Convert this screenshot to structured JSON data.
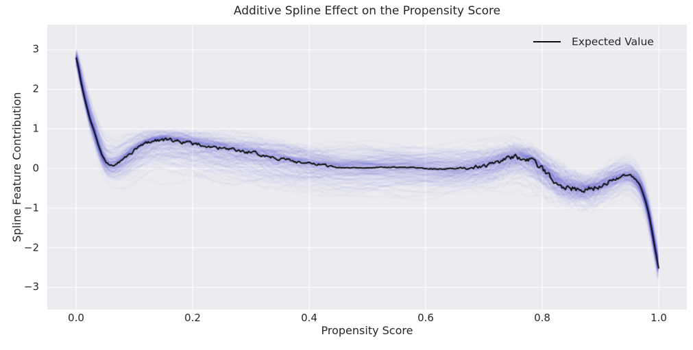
{
  "chart_data": {
    "type": "line",
    "title": "Additive Spline Effect on the Propensity Score",
    "xlabel": "Propensity Score",
    "ylabel": "Spline Feature Contribution",
    "xlim": [
      -0.0494,
      1.0482
    ],
    "ylim": [
      -3.562,
      3.631
    ],
    "grid": true,
    "legend_position": "upper right",
    "x_ticks": {
      "values": [
        0.0,
        0.2,
        0.4,
        0.6,
        0.8,
        1.0
      ],
      "labels": [
        "0.0",
        "0.2",
        "0.4",
        "0.6",
        "0.8",
        "1.0"
      ]
    },
    "y_ticks": {
      "values": [
        -3,
        -2,
        -1,
        0,
        1,
        2,
        3
      ],
      "labels": [
        "−3",
        "−2",
        "−1",
        "0",
        "1",
        "2",
        "3"
      ]
    },
    "legend": [
      {
        "label": "Expected Value",
        "color": "#0d0d0d"
      }
    ],
    "colors": {
      "figure_background": "#ffffff",
      "plot_background": "#ebebf0",
      "grid": "#ffffff",
      "text": "#262626",
      "expected_line": "#0d0d0d",
      "band": "#5252d6"
    },
    "series": [
      {
        "name": "Expected Value",
        "style": "noisy-line",
        "color": "#0d0d0d",
        "points": [
          [
            0.0,
            2.8
          ],
          [
            0.004,
            2.55
          ],
          [
            0.008,
            2.22
          ],
          [
            0.012,
            1.95
          ],
          [
            0.016,
            1.7
          ],
          [
            0.02,
            1.47
          ],
          [
            0.025,
            1.2
          ],
          [
            0.03,
            1.0
          ],
          [
            0.035,
            0.75
          ],
          [
            0.04,
            0.52
          ],
          [
            0.045,
            0.32
          ],
          [
            0.05,
            0.18
          ],
          [
            0.056,
            0.1
          ],
          [
            0.062,
            0.08
          ],
          [
            0.07,
            0.12
          ],
          [
            0.08,
            0.22
          ],
          [
            0.09,
            0.34
          ],
          [
            0.1,
            0.46
          ],
          [
            0.11,
            0.56
          ],
          [
            0.12,
            0.64
          ],
          [
            0.13,
            0.69
          ],
          [
            0.14,
            0.72
          ],
          [
            0.15,
            0.73
          ],
          [
            0.16,
            0.72
          ],
          [
            0.175,
            0.69
          ],
          [
            0.19,
            0.65
          ],
          [
            0.21,
            0.6
          ],
          [
            0.24,
            0.53
          ],
          [
            0.27,
            0.46
          ],
          [
            0.3,
            0.4
          ],
          [
            0.33,
            0.31
          ],
          [
            0.355,
            0.24
          ],
          [
            0.38,
            0.17
          ],
          [
            0.405,
            0.11
          ],
          [
            0.425,
            0.08
          ],
          [
            0.445,
            0.04
          ],
          [
            0.465,
            0.02
          ],
          [
            0.5,
            0.02
          ],
          [
            0.53,
            0.03
          ],
          [
            0.56,
            0.03
          ],
          [
            0.59,
            0.01
          ],
          [
            0.615,
            -0.01
          ],
          [
            0.64,
            -0.02
          ],
          [
            0.66,
            0.0
          ],
          [
            0.68,
            0.03
          ],
          [
            0.7,
            0.07
          ],
          [
            0.72,
            0.14
          ],
          [
            0.74,
            0.24
          ],
          [
            0.755,
            0.28
          ],
          [
            0.77,
            0.26
          ],
          [
            0.785,
            0.16
          ],
          [
            0.8,
            -0.02
          ],
          [
            0.815,
            -0.2
          ],
          [
            0.83,
            -0.38
          ],
          [
            0.845,
            -0.47
          ],
          [
            0.86,
            -0.52
          ],
          [
            0.875,
            -0.53
          ],
          [
            0.89,
            -0.48
          ],
          [
            0.905,
            -0.4
          ],
          [
            0.92,
            -0.29
          ],
          [
            0.933,
            -0.21
          ],
          [
            0.945,
            -0.18
          ],
          [
            0.953,
            -0.2
          ],
          [
            0.96,
            -0.28
          ],
          [
            0.968,
            -0.45
          ],
          [
            0.975,
            -0.72
          ],
          [
            0.982,
            -1.1
          ],
          [
            0.988,
            -1.55
          ],
          [
            0.994,
            -2.05
          ],
          [
            1.0,
            -2.52
          ]
        ],
        "noise_amplitude": [
          [
            0.0,
            0.005
          ],
          [
            0.03,
            0.02
          ],
          [
            0.06,
            0.035
          ],
          [
            0.1,
            0.045
          ],
          [
            0.15,
            0.05
          ],
          [
            0.25,
            0.045
          ],
          [
            0.35,
            0.045
          ],
          [
            0.42,
            0.035
          ],
          [
            0.47,
            0.012
          ],
          [
            0.6,
            0.012
          ],
          [
            0.65,
            0.03
          ],
          [
            0.7,
            0.055
          ],
          [
            0.75,
            0.07
          ],
          [
            0.8,
            0.085
          ],
          [
            0.85,
            0.09
          ],
          [
            0.9,
            0.07
          ],
          [
            0.94,
            0.045
          ],
          [
            0.97,
            0.02
          ],
          [
            1.0,
            0.005
          ]
        ]
      },
      {
        "name": "Posterior spline sample draws",
        "style": "sample-band",
        "color": "#5252d6",
        "n_samples": 160,
        "upper": [
          [
            0.0,
            3.08
          ],
          [
            0.008,
            2.72
          ],
          [
            0.016,
            2.25
          ],
          [
            0.025,
            1.78
          ],
          [
            0.035,
            1.35
          ],
          [
            0.045,
            1.02
          ],
          [
            0.055,
            0.85
          ],
          [
            0.07,
            0.82
          ],
          [
            0.09,
            0.92
          ],
          [
            0.11,
            1.0
          ],
          [
            0.14,
            1.03
          ],
          [
            0.17,
            1.03
          ],
          [
            0.2,
            1.0
          ],
          [
            0.25,
            0.95
          ],
          [
            0.3,
            0.88
          ],
          [
            0.35,
            0.8
          ],
          [
            0.4,
            0.73
          ],
          [
            0.45,
            0.7
          ],
          [
            0.5,
            0.73
          ],
          [
            0.55,
            0.73
          ],
          [
            0.6,
            0.7
          ],
          [
            0.65,
            0.68
          ],
          [
            0.7,
            0.72
          ],
          [
            0.75,
            0.78
          ],
          [
            0.775,
            0.7
          ],
          [
            0.8,
            0.55
          ],
          [
            0.83,
            0.3
          ],
          [
            0.86,
            0.05
          ],
          [
            0.88,
            -0.05
          ],
          [
            0.9,
            0.1
          ],
          [
            0.925,
            0.3
          ],
          [
            0.945,
            0.38
          ],
          [
            0.96,
            0.2
          ],
          [
            0.972,
            -0.1
          ],
          [
            0.982,
            -0.6
          ],
          [
            0.99,
            -1.2
          ],
          [
            1.0,
            -1.95
          ]
        ],
        "lower": [
          [
            0.0,
            2.5
          ],
          [
            0.008,
            2.0
          ],
          [
            0.016,
            1.45
          ],
          [
            0.025,
            0.85
          ],
          [
            0.035,
            0.3
          ],
          [
            0.045,
            -0.1
          ],
          [
            0.055,
            -0.38
          ],
          [
            0.07,
            -0.55
          ],
          [
            0.09,
            -0.6
          ],
          [
            0.11,
            -0.52
          ],
          [
            0.14,
            -0.42
          ],
          [
            0.17,
            -0.42
          ],
          [
            0.2,
            -0.45
          ],
          [
            0.25,
            -0.52
          ],
          [
            0.3,
            -0.6
          ],
          [
            0.35,
            -0.68
          ],
          [
            0.4,
            -0.72
          ],
          [
            0.45,
            -0.76
          ],
          [
            0.5,
            -0.78
          ],
          [
            0.55,
            -0.78
          ],
          [
            0.6,
            -0.75
          ],
          [
            0.65,
            -0.72
          ],
          [
            0.7,
            -0.64
          ],
          [
            0.75,
            -0.55
          ],
          [
            0.775,
            -0.62
          ],
          [
            0.8,
            -0.8
          ],
          [
            0.83,
            -1.0
          ],
          [
            0.86,
            -1.1
          ],
          [
            0.88,
            -1.15
          ],
          [
            0.9,
            -1.0
          ],
          [
            0.925,
            -0.8
          ],
          [
            0.945,
            -0.7
          ],
          [
            0.96,
            -0.85
          ],
          [
            0.972,
            -1.1
          ],
          [
            0.982,
            -1.6
          ],
          [
            0.99,
            -2.2
          ],
          [
            1.0,
            -3.0
          ]
        ]
      }
    ]
  }
}
